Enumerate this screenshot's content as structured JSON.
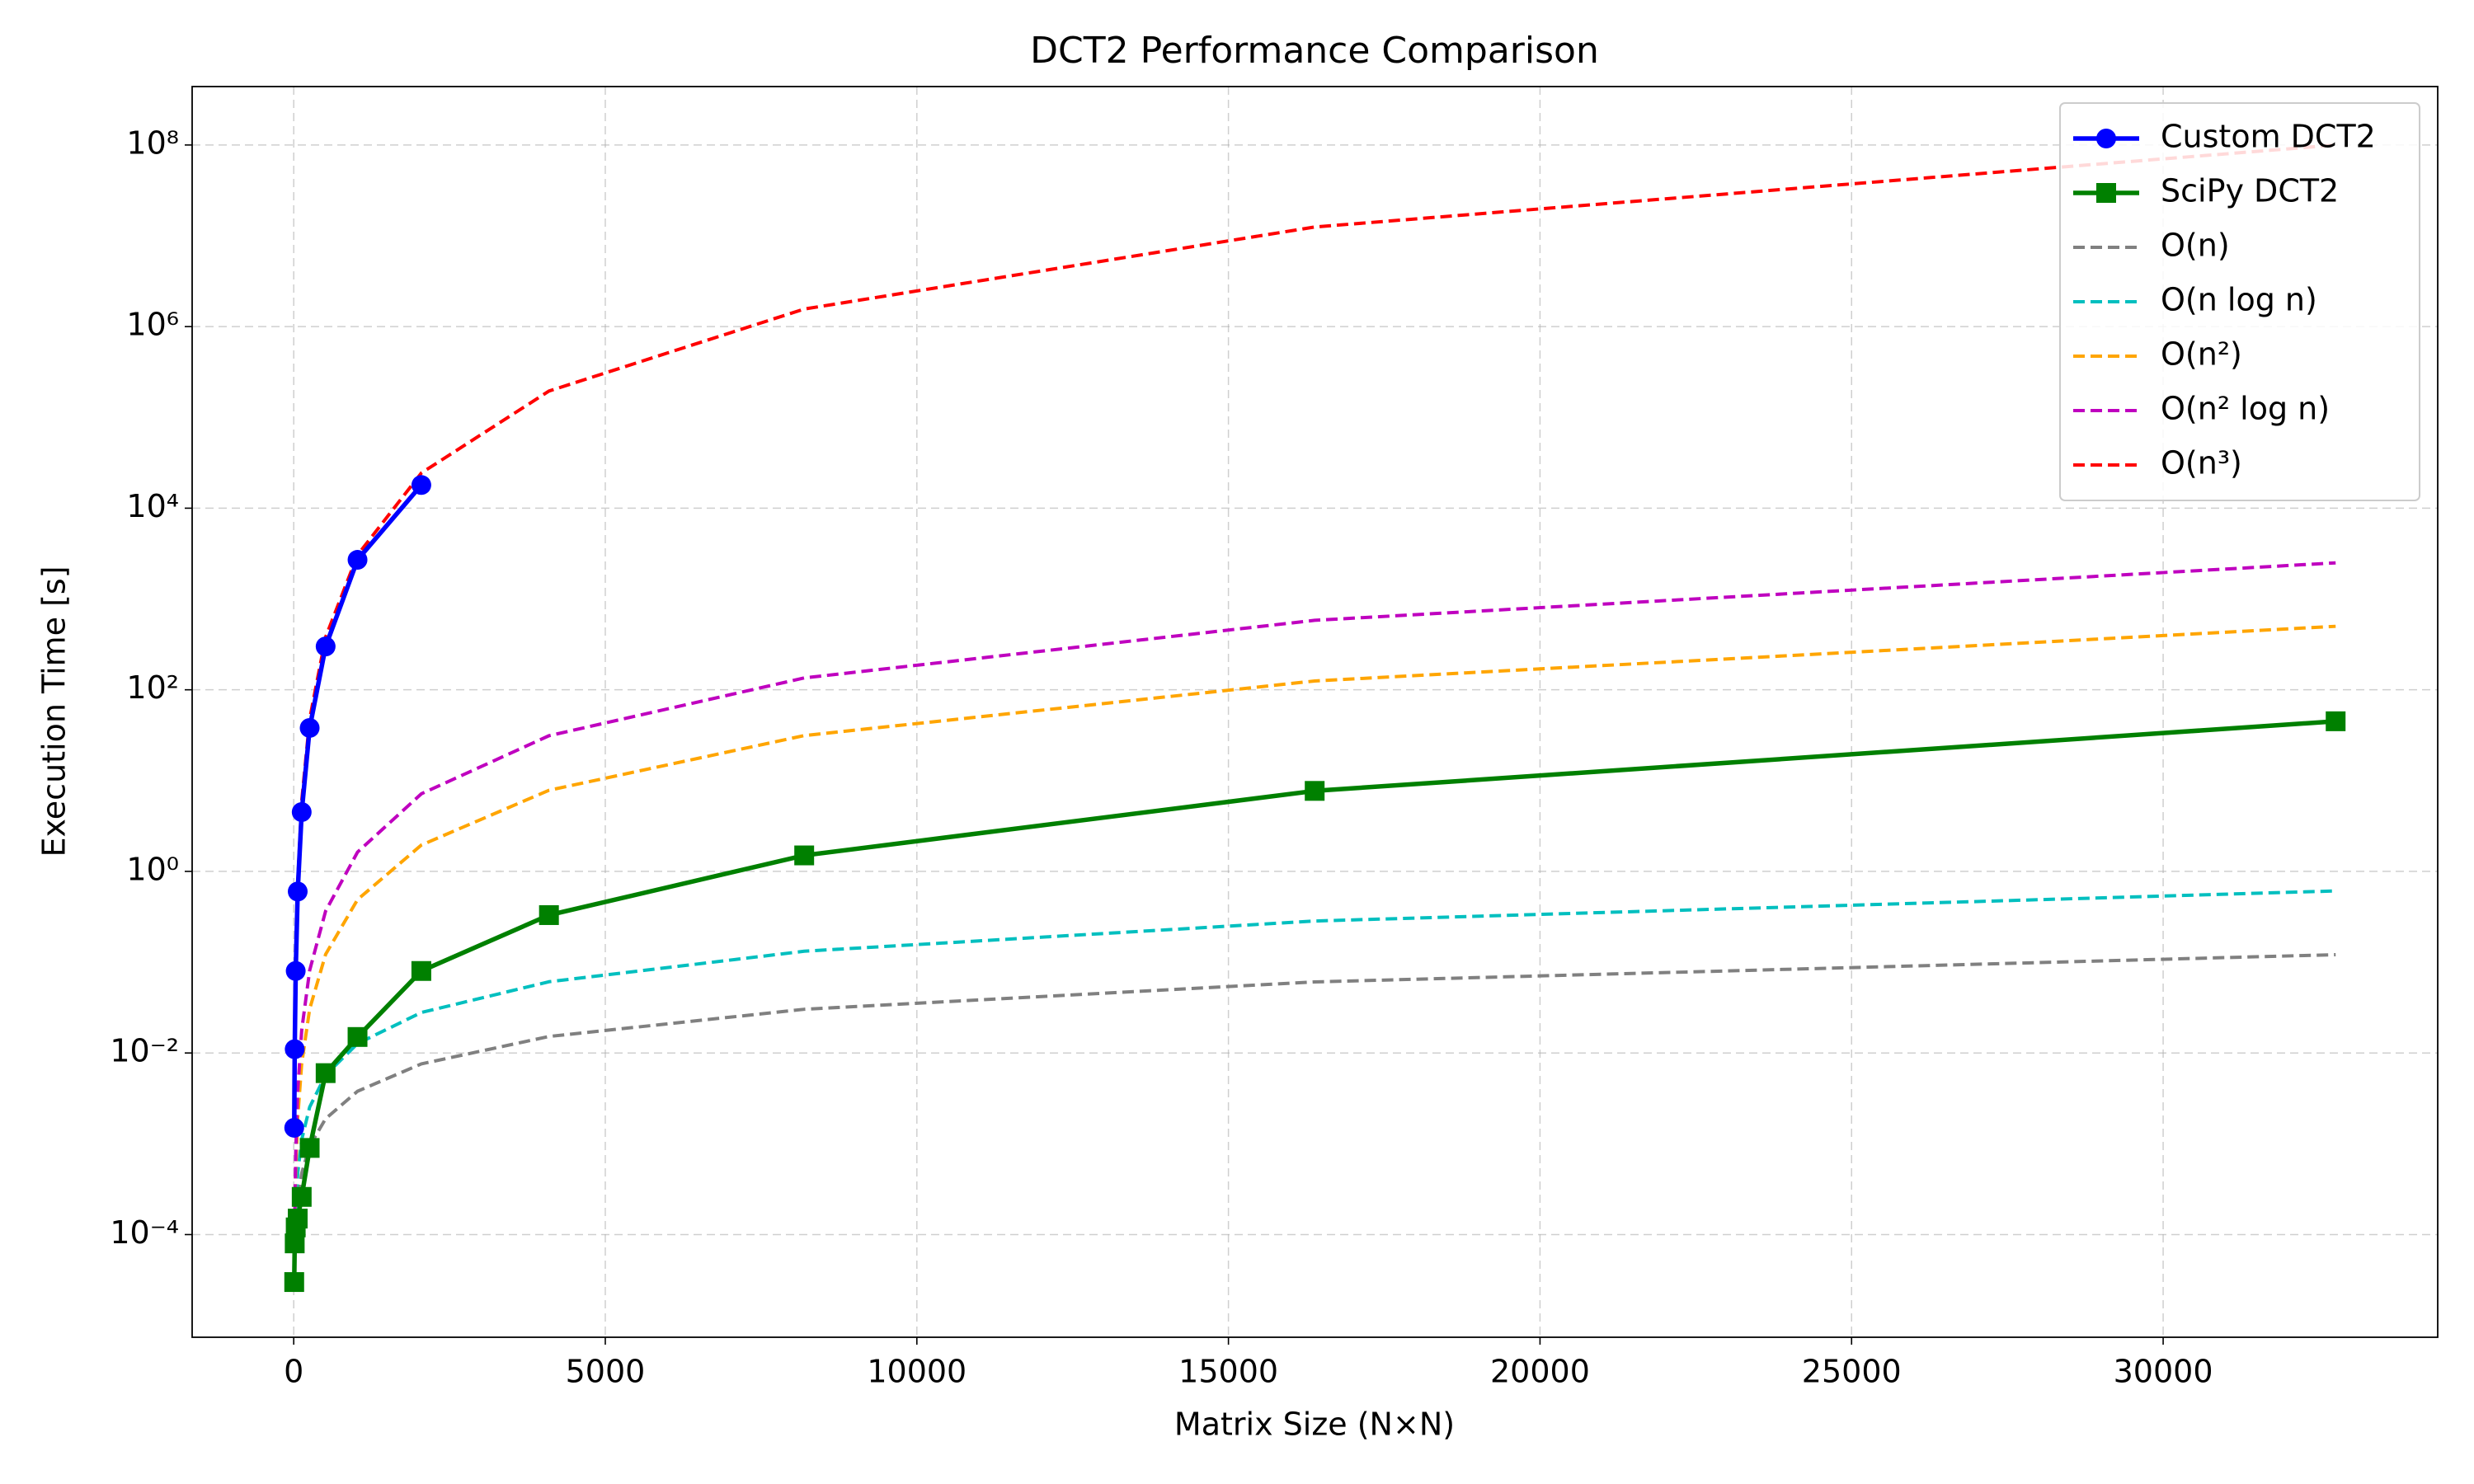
{
  "chart_data": {
    "type": "line",
    "title": "DCT2 Performance Comparison",
    "x_label": "Matrix Size (N×N)",
    "y_label": "Execution Time [s]",
    "x": [
      8,
      16,
      32,
      64,
      128,
      256,
      512,
      1024,
      2048,
      4096,
      8192,
      16384,
      32768
    ],
    "series": [
      {
        "name": "Custom DCT2",
        "color": "#0000ff",
        "linestyle": "solid",
        "marker": "o",
        "values": [
          0.0015,
          0.011,
          0.08,
          0.6,
          4.5,
          38,
          300,
          2700,
          18000,
          null,
          null,
          null,
          null
        ]
      },
      {
        "name": "SciPy DCT2",
        "color": "#008000",
        "linestyle": "solid",
        "marker": "s",
        "values": [
          3e-05,
          8e-05,
          0.00012,
          0.00015,
          0.00026,
          0.0009,
          0.006,
          0.015,
          0.08,
          0.33,
          1.5,
          7.7,
          45
        ]
      },
      {
        "name": "O(n)",
        "color": "#808080",
        "linestyle": "dashed",
        "values": [
          2.96e-05,
          5.92e-05,
          0.000118,
          0.000237,
          0.000474,
          0.000947,
          0.00189,
          0.00379,
          0.00758,
          0.0152,
          0.0303,
          0.0606,
          0.121
        ]
      },
      {
        "name": "O(n log n)",
        "color": "#00bfbf",
        "linestyle": "dashed",
        "values": [
          2.98e-05,
          7.94e-05,
          0.000198,
          0.000476,
          0.00111,
          0.00254,
          0.00571,
          0.0127,
          0.0279,
          0.0609,
          0.132,
          0.284,
          0.609
        ]
      },
      {
        "name": "O(n²)",
        "color": "#ffa500",
        "linestyle": "dashed",
        "values": [
          2.98e-05,
          0.000119,
          0.000477,
          0.00191,
          0.00763,
          0.0305,
          0.122,
          0.489,
          1.95,
          7.82,
          31.3,
          125,
          500
        ]
      },
      {
        "name": "O(n² log n)",
        "color": "#bf00bf",
        "linestyle": "dashed",
        "values": [
          2.98e-05,
          0.000159,
          0.000794,
          0.00381,
          0.0178,
          0.0813,
          0.366,
          1.63,
          7.15,
          31.2,
          135,
          582,
          2500
        ]
      },
      {
        "name": "O(n³)",
        "color": "#ff0000",
        "linestyle": "dashed",
        "values": [
          0.00145,
          0.0116,
          0.0931,
          0.745,
          5.96,
          47.6,
          381,
          3050,
          24400,
          195000,
          1560000,
          12500000,
          99900000
        ]
      }
    ],
    "xlim": [
      -1630,
      34406
    ],
    "xticks": [
      0,
      5000,
      10000,
      15000,
      20000,
      25000,
      30000
    ],
    "ylim": [
      7.4e-06,
      440000000.0
    ],
    "yscale": "log",
    "yticks": [
      {
        "value": 0.0001,
        "label": "10⁻⁴"
      },
      {
        "value": 0.01,
        "label": "10⁻²"
      },
      {
        "value": 1,
        "label": "10⁰"
      },
      {
        "value": 100,
        "label": "10²"
      },
      {
        "value": 10000,
        "label": "10⁴"
      },
      {
        "value": 1000000,
        "label": "10⁶"
      },
      {
        "value": 100000000,
        "label": "10⁸"
      }
    ],
    "grid": true,
    "legend": "upper right"
  }
}
